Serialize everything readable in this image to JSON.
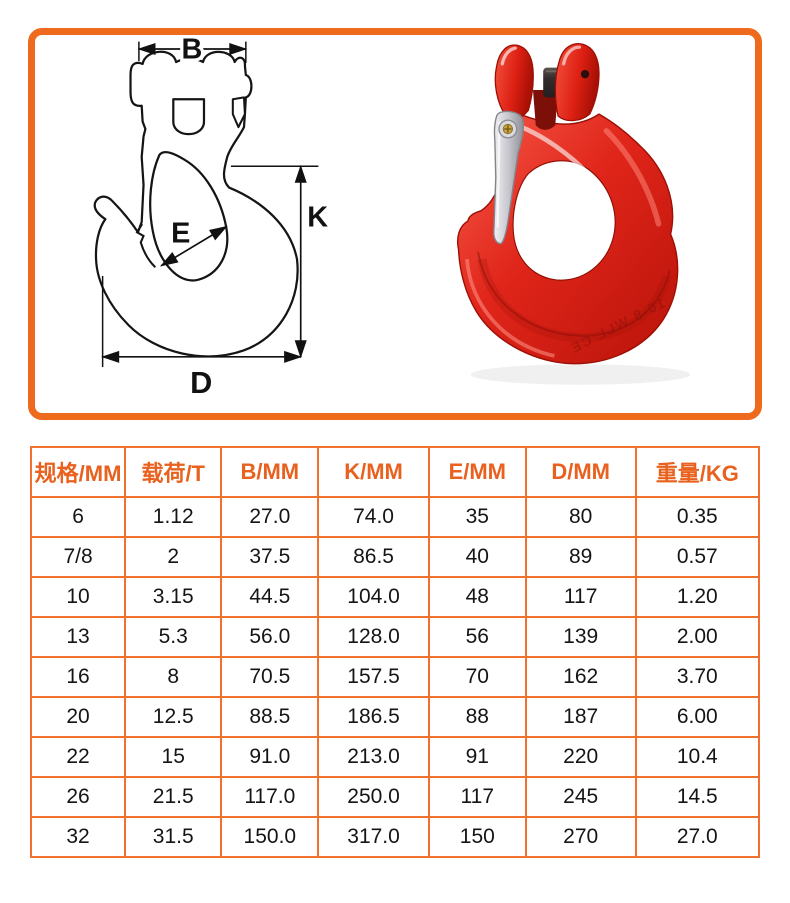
{
  "colors": {
    "accent_orange": "#ee6a1d",
    "table_border_orange": "#f0722e",
    "header_text_orange": "#e8611f",
    "hook_red": "#e0251a",
    "latch_silver": "#c9c9cf",
    "line_art_black": "#151515"
  },
  "diagram": {
    "labels": {
      "b": "B",
      "k": "K",
      "e": "E",
      "d": "D"
    }
  },
  "photo": {
    "embossed_text": "10-8 WLL CE"
  },
  "table": {
    "headers": [
      "规格/MM",
      "载荷/T",
      "B/MM",
      "K/MM",
      "E/MM",
      "D/MM",
      "重量/KG"
    ],
    "rows": [
      [
        "6",
        "1.12",
        "27.0",
        "74.0",
        "35",
        "80",
        "0.35"
      ],
      [
        "7/8",
        "2",
        "37.5",
        "86.5",
        "40",
        "89",
        "0.57"
      ],
      [
        "10",
        "3.15",
        "44.5",
        "104.0",
        "48",
        "117",
        "1.20"
      ],
      [
        "13",
        "5.3",
        "56.0",
        "128.0",
        "56",
        "139",
        "2.00"
      ],
      [
        "16",
        "8",
        "70.5",
        "157.5",
        "70",
        "162",
        "3.70"
      ],
      [
        "20",
        "12.5",
        "88.5",
        "186.5",
        "88",
        "187",
        "6.00"
      ],
      [
        "22",
        "15",
        "91.0",
        "213.0",
        "91",
        "220",
        "10.4"
      ],
      [
        "26",
        "21.5",
        "117.0",
        "250.0",
        "117",
        "245",
        "14.5"
      ],
      [
        "32",
        "31.5",
        "150.0",
        "317.0",
        "150",
        "270",
        "27.0"
      ]
    ]
  }
}
